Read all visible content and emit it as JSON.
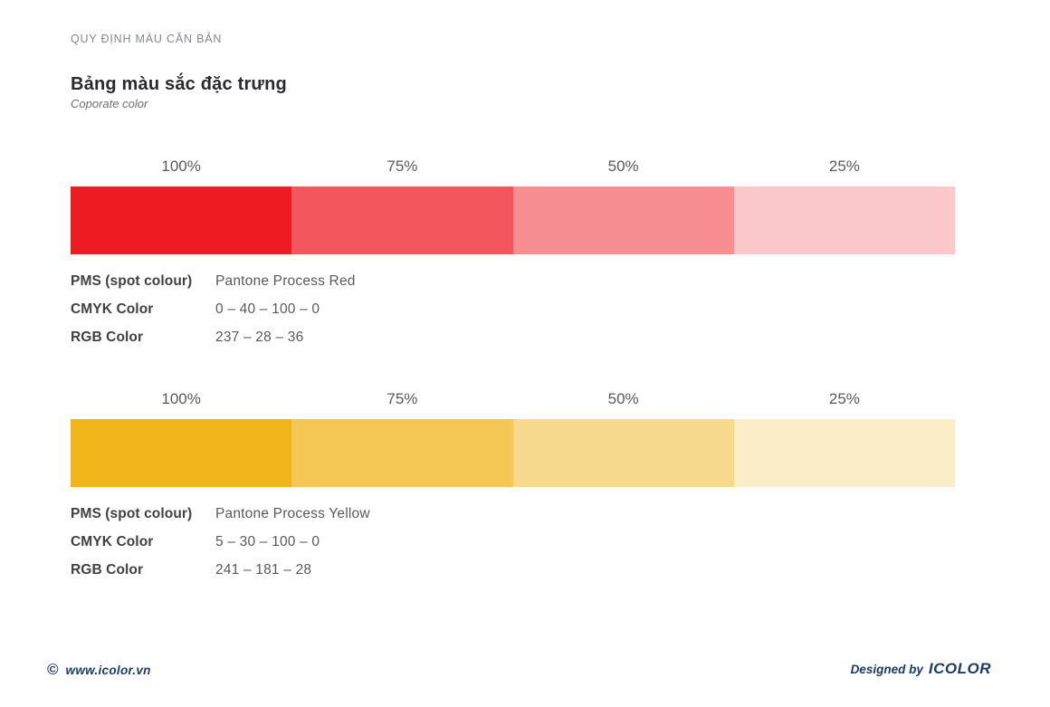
{
  "page": {
    "eyebrow": "QUY ĐỊNH MÀU CĂN BẢN",
    "title": "Bảng màu sắc đặc trưng",
    "subtitle": "Coporate color"
  },
  "swatches": [
    {
      "name": "red",
      "tints": [
        {
          "label": "100%",
          "color": "#ED1C24"
        },
        {
          "label": "75%",
          "color": "#F2555C"
        },
        {
          "label": "50%",
          "color": "#F68E92"
        },
        {
          "label": "25%",
          "color": "#FAC7CB"
        }
      ],
      "specs": [
        {
          "label": "PMS (spot colour)",
          "value": "Pantone Process Red"
        },
        {
          "label": "CMYK Color",
          "value": "0 – 40 – 100 – 0"
        },
        {
          "label": "RGB Color",
          "value": "237 – 28 – 36"
        }
      ]
    },
    {
      "name": "yellow",
      "tints": [
        {
          "label": "100%",
          "color": "#F1B51C"
        },
        {
          "label": "75%",
          "color": "#F4C755"
        },
        {
          "label": "50%",
          "color": "#F8DA8E"
        },
        {
          "label": "25%",
          "color": "#FCEDC9"
        }
      ],
      "specs": [
        {
          "label": "PMS (spot colour)",
          "value": "Pantone Process Yellow"
        },
        {
          "label": "CMYK Color",
          "value": "5 – 30 – 100 – 0"
        },
        {
          "label": "RGB Color",
          "value": "241 – 181 – 28"
        }
      ]
    }
  ],
  "footer": {
    "copyright_symbol": "©",
    "website": "www.icolor.vn",
    "designed_by": "Designed by",
    "brand": "ICOLOR",
    "accent_color": "#1B3A66"
  }
}
